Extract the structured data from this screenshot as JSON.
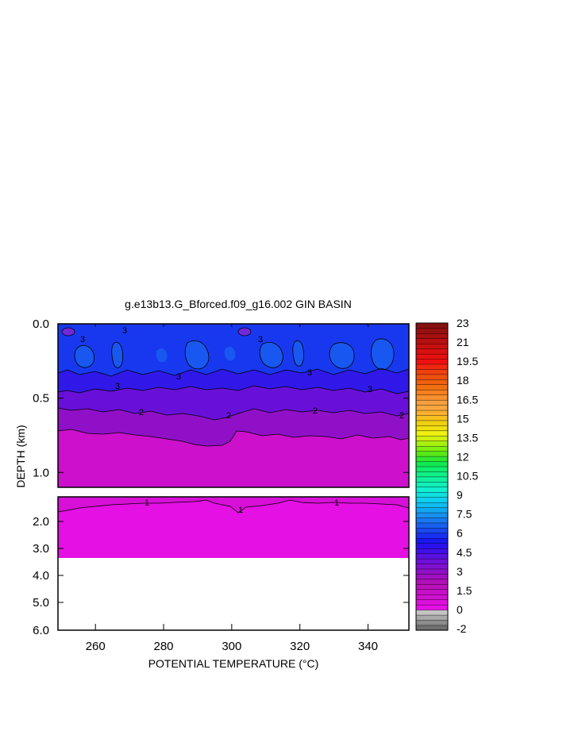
{
  "chart_data": {
    "type": "heatmap",
    "title": "g.e13b13.G_Bforced.f09_g16.002 GIN BASIN",
    "xlabel": "POTENTIAL TEMPERATURE (°C)",
    "ylabel": "DEPTH (km)",
    "x_ticks": [
      "260",
      "280",
      "300",
      "320",
      "340"
    ],
    "x_tick_values": [
      260,
      280,
      300,
      320,
      340
    ],
    "xlim": [
      249,
      352
    ],
    "upper_panel": {
      "ylim": [
        0.0,
        1.1
      ],
      "y_ticks": [
        "0.0",
        "0.5",
        "1.0"
      ],
      "y_tick_values": [
        0.0,
        0.5,
        1.0
      ]
    },
    "lower_panel": {
      "ylim": [
        1.5,
        6.0
      ],
      "y_ticks": [
        "2.0",
        "3.0",
        "4.0",
        "5.0",
        "6.0"
      ],
      "y_tick_values": [
        2.0,
        3.0,
        4.0,
        5.0,
        6.0
      ],
      "data_bottom": 3.4
    },
    "contour_levels": [
      1,
      2,
      3
    ],
    "contour_labels": [
      "1",
      "1",
      "1",
      "2",
      "2",
      "2",
      "2",
      "3",
      "3",
      "3",
      "3",
      "3",
      "3",
      "3"
    ],
    "colorbar": {
      "min": -2,
      "max": 23,
      "labels": [
        "23",
        "21",
        "19.5",
        "18",
        "16.5",
        "15",
        "13.5",
        "12",
        "10.5",
        "9",
        "7.5",
        "6",
        "4.5",
        "3",
        "1.5",
        "0",
        "-2"
      ],
      "colors": [
        "#707070",
        "#8c8c8c",
        "#a8a8a8",
        "#c4c4c4",
        "#e810e8",
        "#dc10dc",
        "#d010d0",
        "#c610c6",
        "#bc10bc",
        "#b010b8",
        "#a010c0",
        "#9010c8",
        "#8010d0",
        "#6e10d8",
        "#5a10e0",
        "#4010e8",
        "#2a10ee",
        "#1818f0",
        "#1830f0",
        "#1848f0",
        "#1860f0",
        "#1878f0",
        "#1890f0",
        "#10a8f0",
        "#10bcf0",
        "#10d0f0",
        "#10e0e0",
        "#10f0d0",
        "#10f0b8",
        "#10f0a0",
        "#10f088",
        "#10f070",
        "#10e850",
        "#30e830",
        "#58e818",
        "#80f010",
        "#a8f010",
        "#d0f010",
        "#f0f010",
        "#f0e010",
        "#f0d010",
        "#f8c020",
        "#f8b030",
        "#f8a840",
        "#f8a040",
        "#f89030",
        "#f88020",
        "#f07010",
        "#f06010",
        "#f05010",
        "#f04010",
        "#f02810",
        "#f01010",
        "#e81010",
        "#d81010",
        "#c81010",
        "#b81010",
        "#a81010",
        "#981010",
        "#881010"
      ]
    }
  }
}
